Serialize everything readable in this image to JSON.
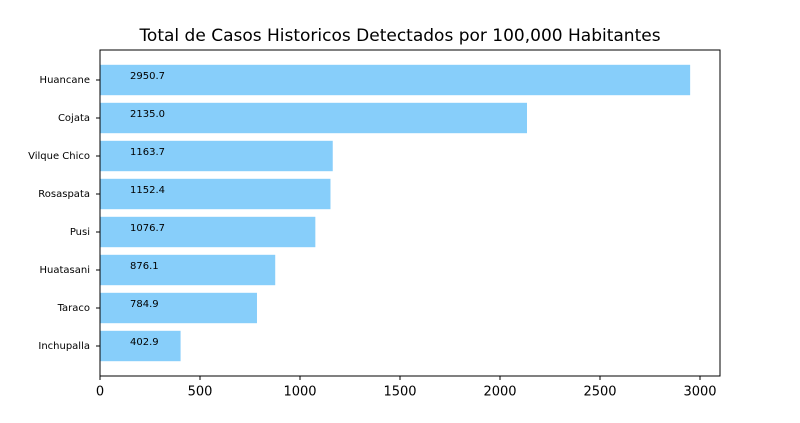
{
  "chart_data": {
    "type": "barh",
    "title": "Total de Casos Historicos Detectados por 100,000 Habitantes",
    "categories": [
      "Huancane",
      "Cojata",
      "Vilque Chico",
      "Rosaspata",
      "Pusi",
      "Huatasani",
      "Taraco",
      "Inchupalla"
    ],
    "values": [
      2950.7,
      2135,
      1163.7,
      1152.4,
      1076.7,
      876.1,
      784.9,
      402.9
    ],
    "value_labels": [
      "2950.7",
      "2135.0",
      "1163.7",
      "1152.4",
      "1076.7",
      "876.1",
      "784.9",
      "402.9"
    ],
    "color": "#87cefa",
    "xlim": [
      0,
      3100
    ],
    "xticks": [
      0,
      500,
      1000,
      1500,
      2000,
      2500,
      3000
    ],
    "grid": false
  }
}
